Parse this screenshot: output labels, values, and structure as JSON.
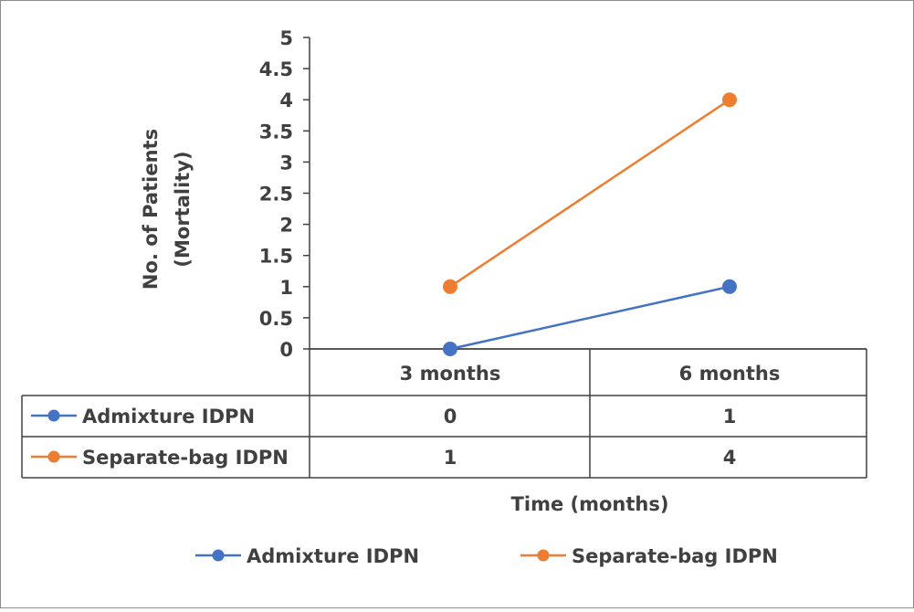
{
  "chart_data": {
    "type": "line",
    "categories": [
      "3 months",
      "6 months"
    ],
    "series": [
      {
        "name": "Admixture IDPN",
        "values": [
          0,
          1
        ],
        "color": "#4472C4"
      },
      {
        "name": "Separate-bag IDPN",
        "values": [
          1,
          4
        ],
        "color": "#ED7D31"
      }
    ],
    "ylabel_line1": "No. of Patients",
    "ylabel_line2": "(Mortality)",
    "xlabel": "Time (months)",
    "ylim": [
      0,
      5
    ],
    "yticks": [
      "0",
      "0.5",
      "1",
      "1.5",
      "2",
      "2.5",
      "3",
      "3.5",
      "4",
      "4.5",
      "5"
    ],
    "ytick_values": [
      0,
      0.5,
      1,
      1.5,
      2,
      2.5,
      3,
      3.5,
      4,
      4.5,
      5
    ],
    "data_table": {
      "rows": [
        {
          "label": "Admixture IDPN",
          "values": [
            "0",
            "1"
          ]
        },
        {
          "label": "Separate-bag IDPN",
          "values": [
            "1",
            "4"
          ]
        }
      ]
    },
    "legend_position": "bottom",
    "grid": false
  }
}
